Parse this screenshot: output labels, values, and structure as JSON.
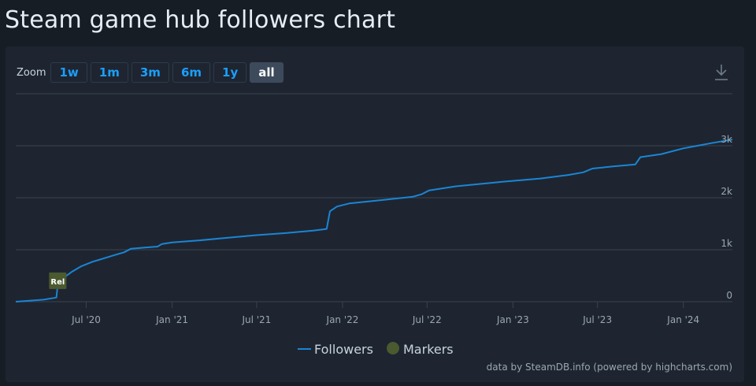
{
  "page": {
    "title": "Steam game hub followers chart"
  },
  "zoom": {
    "label": "Zoom",
    "buttons": [
      "1w",
      "1m",
      "3m",
      "6m",
      "1y",
      "all"
    ],
    "active": "all"
  },
  "icons": {
    "download": "download-icon"
  },
  "colors": {
    "series": "#1b85d4",
    "marker_fill": "#4b5a2f",
    "marker_text": "#ffffff",
    "grid": "#3a4350",
    "axis_text": "#9aa7b3",
    "active_zoom": "#3d4a5c",
    "zoom_text": "#1a9fff"
  },
  "chart_data": {
    "type": "line",
    "title": "Steam game hub followers chart",
    "xlabel": "",
    "ylabel": "",
    "x_tick_labels": [
      "Jul '20",
      "Jan '21",
      "Jul '21",
      "Jan '22",
      "Jul '22",
      "Jan '23",
      "Jul '23",
      "Jan '24"
    ],
    "x_tick_dates": [
      "2020-07-01",
      "2021-01-01",
      "2021-07-01",
      "2022-01-01",
      "2022-07-01",
      "2023-01-01",
      "2023-07-01",
      "2024-01-01"
    ],
    "x_range": [
      "2020-02-01",
      "2024-04-15"
    ],
    "y_tick_labels": [
      "0",
      "1k",
      "2k",
      "3k"
    ],
    "y_tick_values": [
      0,
      1000,
      2000,
      3000
    ],
    "ylim": [
      0,
      4000
    ],
    "grid": true,
    "legend_position": "bottom-center",
    "legend": [
      "Followers",
      "Markers"
    ],
    "series": [
      {
        "name": "Followers",
        "points": [
          [
            "2020-02-01",
            0
          ],
          [
            "2020-03-01",
            20
          ],
          [
            "2020-04-01",
            40
          ],
          [
            "2020-04-28",
            80
          ],
          [
            "2020-05-01",
            330
          ],
          [
            "2020-05-15",
            470
          ],
          [
            "2020-06-01",
            580
          ],
          [
            "2020-06-20",
            680
          ],
          [
            "2020-07-15",
            770
          ],
          [
            "2020-08-10",
            840
          ],
          [
            "2020-09-01",
            900
          ],
          [
            "2020-09-20",
            950
          ],
          [
            "2020-10-05",
            1020
          ],
          [
            "2020-11-01",
            1040
          ],
          [
            "2020-12-01",
            1060
          ],
          [
            "2020-12-10",
            1110
          ],
          [
            "2021-01-01",
            1140
          ],
          [
            "2021-03-01",
            1180
          ],
          [
            "2021-05-01",
            1230
          ],
          [
            "2021-07-01",
            1280
          ],
          [
            "2021-09-01",
            1320
          ],
          [
            "2021-11-01",
            1370
          ],
          [
            "2021-11-28",
            1400
          ],
          [
            "2021-12-05",
            1740
          ],
          [
            "2021-12-20",
            1830
          ],
          [
            "2022-01-15",
            1890
          ],
          [
            "2022-04-01",
            1960
          ],
          [
            "2022-06-01",
            2020
          ],
          [
            "2022-06-20",
            2070
          ],
          [
            "2022-07-05",
            2140
          ],
          [
            "2022-09-01",
            2220
          ],
          [
            "2022-12-01",
            2300
          ],
          [
            "2023-03-01",
            2370
          ],
          [
            "2023-05-01",
            2440
          ],
          [
            "2023-06-01",
            2490
          ],
          [
            "2023-06-20",
            2560
          ],
          [
            "2023-08-01",
            2600
          ],
          [
            "2023-09-20",
            2640
          ],
          [
            "2023-10-01",
            2780
          ],
          [
            "2023-11-15",
            2840
          ],
          [
            "2024-01-01",
            2950
          ],
          [
            "2024-03-01",
            3050
          ],
          [
            "2024-04-15",
            3120
          ]
        ]
      }
    ],
    "markers": [
      {
        "label": "Rel",
        "date": "2020-05-01",
        "value": 380
      }
    ]
  },
  "footer": {
    "credit": "data by SteamDB.info (powered by highcharts.com)"
  }
}
